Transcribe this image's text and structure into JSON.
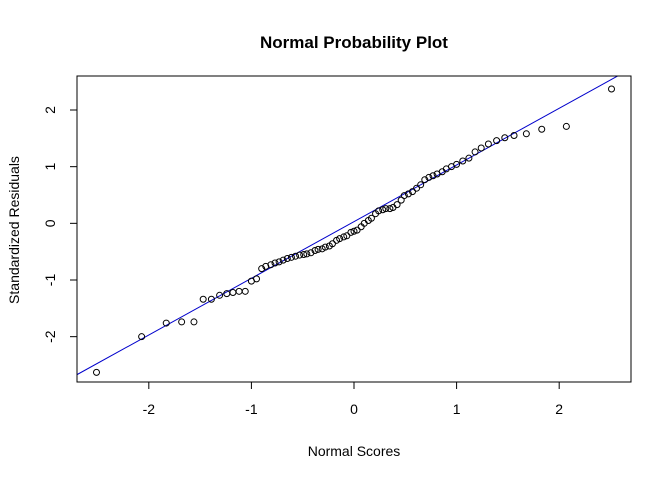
{
  "chart_data": {
    "type": "scatter",
    "title": "Normal Probability Plot",
    "xlabel": "Normal Scores",
    "ylabel": "Standardized Residuals",
    "xlim": [
      -2.7,
      2.7
    ],
    "ylim": [
      -2.8,
      2.6
    ],
    "xticks": [
      -2,
      -1,
      0,
      1,
      2
    ],
    "xtick_labels": [
      "-2",
      "-1",
      "0",
      "1",
      "2"
    ],
    "yticks": [
      -2,
      -1,
      0,
      1,
      2
    ],
    "ytick_labels": [
      "-2",
      "-1",
      "0",
      "1",
      "2"
    ],
    "grid": false,
    "reference_line": {
      "slope": 1.0,
      "intercept": 0.03,
      "color": "#0000cc"
    },
    "points": [
      [
        -2.51,
        -2.63
      ],
      [
        -2.07,
        -2.0
      ],
      [
        -1.83,
        -1.76
      ],
      [
        -1.68,
        -1.74
      ],
      [
        -1.56,
        -1.74
      ],
      [
        -1.47,
        -1.34
      ],
      [
        -1.39,
        -1.34
      ],
      [
        -1.31,
        -1.27
      ],
      [
        -1.24,
        -1.24
      ],
      [
        -1.18,
        -1.22
      ],
      [
        -1.12,
        -1.2
      ],
      [
        -1.06,
        -1.2
      ],
      [
        -1.0,
        -1.02
      ],
      [
        -0.95,
        -0.98
      ],
      [
        -0.9,
        -0.8
      ],
      [
        -0.86,
        -0.76
      ],
      [
        -0.81,
        -0.73
      ],
      [
        -0.77,
        -0.7
      ],
      [
        -0.73,
        -0.68
      ],
      [
        -0.69,
        -0.65
      ],
      [
        -0.65,
        -0.62
      ],
      [
        -0.61,
        -0.6
      ],
      [
        -0.57,
        -0.58
      ],
      [
        -0.53,
        -0.56
      ],
      [
        -0.49,
        -0.55
      ],
      [
        -0.46,
        -0.54
      ],
      [
        -0.42,
        -0.52
      ],
      [
        -0.38,
        -0.48
      ],
      [
        -0.35,
        -0.46
      ],
      [
        -0.31,
        -0.45
      ],
      [
        -0.28,
        -0.42
      ],
      [
        -0.24,
        -0.4
      ],
      [
        -0.21,
        -0.36
      ],
      [
        -0.17,
        -0.3
      ],
      [
        -0.14,
        -0.27
      ],
      [
        -0.1,
        -0.24
      ],
      [
        -0.07,
        -0.22
      ],
      [
        -0.03,
        -0.16
      ],
      [
        0.0,
        -0.14
      ],
      [
        0.03,
        -0.12
      ],
      [
        0.07,
        -0.06
      ],
      [
        0.1,
        0.0
      ],
      [
        0.14,
        0.05
      ],
      [
        0.17,
        0.09
      ],
      [
        0.21,
        0.17
      ],
      [
        0.24,
        0.22
      ],
      [
        0.28,
        0.24
      ],
      [
        0.31,
        0.26
      ],
      [
        0.35,
        0.26
      ],
      [
        0.38,
        0.28
      ],
      [
        0.42,
        0.33
      ],
      [
        0.46,
        0.41
      ],
      [
        0.49,
        0.49
      ],
      [
        0.53,
        0.52
      ],
      [
        0.57,
        0.56
      ],
      [
        0.61,
        0.62
      ],
      [
        0.65,
        0.68
      ],
      [
        0.69,
        0.77
      ],
      [
        0.73,
        0.81
      ],
      [
        0.77,
        0.84
      ],
      [
        0.81,
        0.87
      ],
      [
        0.86,
        0.91
      ],
      [
        0.9,
        0.96
      ],
      [
        0.95,
        1.0
      ],
      [
        1.0,
        1.04
      ],
      [
        1.06,
        1.1
      ],
      [
        1.12,
        1.15
      ],
      [
        1.18,
        1.26
      ],
      [
        1.24,
        1.33
      ],
      [
        1.31,
        1.4
      ],
      [
        1.39,
        1.46
      ],
      [
        1.47,
        1.51
      ],
      [
        1.56,
        1.55
      ],
      [
        1.68,
        1.58
      ],
      [
        1.83,
        1.66
      ],
      [
        2.07,
        1.71
      ],
      [
        2.51,
        2.37
      ]
    ]
  }
}
